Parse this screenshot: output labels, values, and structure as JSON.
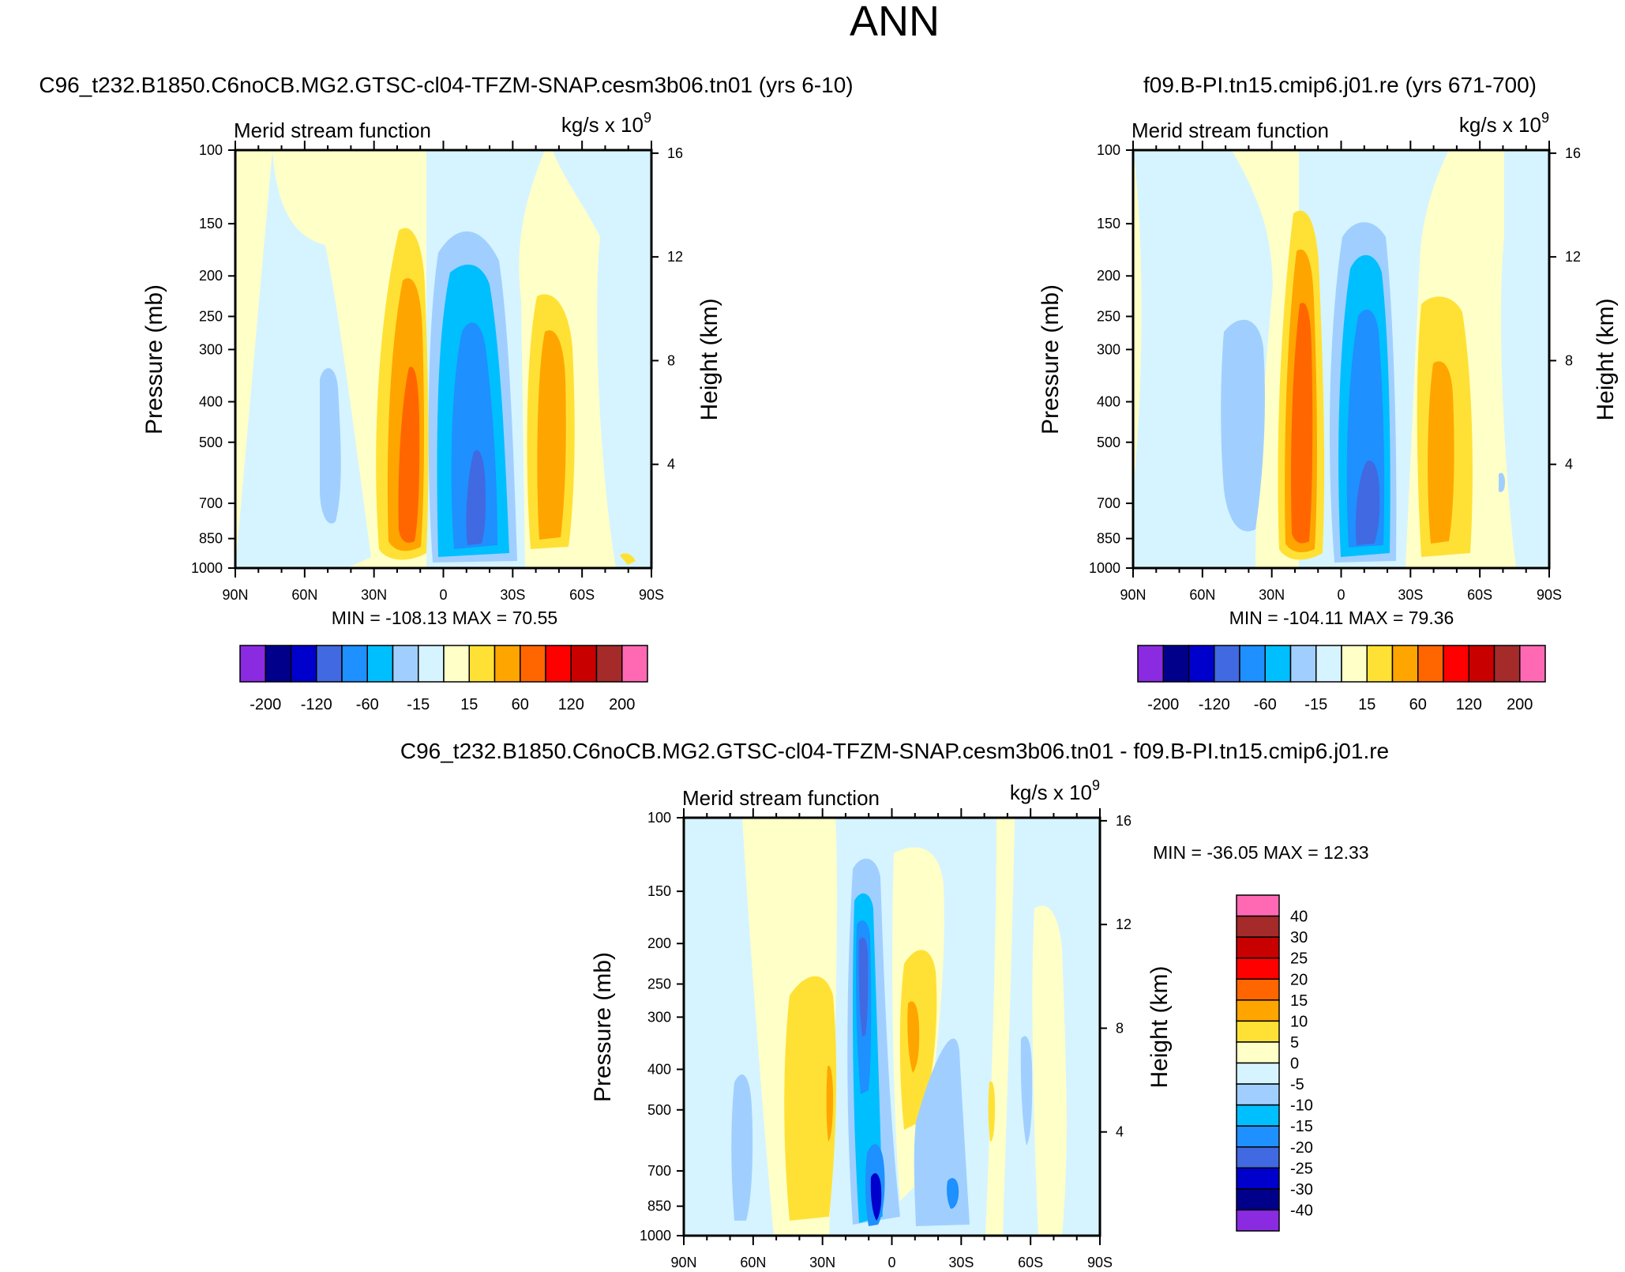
{
  "figure_title": "ANN",
  "chart_data": [
    {
      "type": "contour",
      "id": "p1",
      "case_title": "C96_t232.B1850.C6noCB.MG2.GTSC-cl04-TFZM-SNAP.cesm3b06.tn01 (yrs 6-10)",
      "title": "Merid stream function",
      "units": "kg/s x 10",
      "units_exp": "9",
      "ylabel": "Pressure (mb)",
      "y2label": "Height (km)",
      "x_ticks": [
        "90N",
        "60N",
        "30N",
        "0",
        "30S",
        "60S",
        "90S"
      ],
      "p_ticks": [
        "100",
        "150",
        "200",
        "250",
        "300",
        "400",
        "500",
        "700",
        "850",
        "1000"
      ],
      "p_values": [
        100,
        150,
        200,
        250,
        300,
        400,
        500,
        700,
        850,
        1000
      ],
      "z_ticks": [
        "16",
        "12",
        "8",
        "4"
      ],
      "z_values": [
        16,
        12,
        8,
        4
      ],
      "stats": "MIN = -108.13  MAX =  70.55",
      "colorbar_labels": [
        "-200",
        "-120",
        "-60",
        "-15",
        "15",
        "60",
        "120",
        "200"
      ],
      "colorbar_orientation": "horizontal"
    },
    {
      "type": "contour",
      "id": "p2",
      "case_title": "f09.B-PI.tn15.cmip6.j01.re (yrs 671-700)",
      "title": "Merid stream function",
      "units": "kg/s x 10",
      "units_exp": "9",
      "ylabel": "Pressure (mb)",
      "y2label": "Height (km)",
      "x_ticks": [
        "90N",
        "60N",
        "30N",
        "0",
        "30S",
        "60S",
        "90S"
      ],
      "p_ticks": [
        "100",
        "150",
        "200",
        "250",
        "300",
        "400",
        "500",
        "700",
        "850",
        "1000"
      ],
      "p_values": [
        100,
        150,
        200,
        250,
        300,
        400,
        500,
        700,
        850,
        1000
      ],
      "z_ticks": [
        "16",
        "12",
        "8",
        "4"
      ],
      "z_values": [
        16,
        12,
        8,
        4
      ],
      "stats": "MIN = -104.11  MAX =  79.36",
      "colorbar_labels": [
        "-200",
        "-120",
        "-60",
        "-15",
        "15",
        "60",
        "120",
        "200"
      ],
      "colorbar_orientation": "horizontal"
    },
    {
      "type": "contour",
      "id": "p3",
      "case_title": "C96_t232.B1850.C6noCB.MG2.GTSC-cl04-TFZM-SNAP.cesm3b06.tn01 - f09.B-PI.tn15.cmip6.j01.re",
      "title": "Merid stream function",
      "units": "kg/s x 10",
      "units_exp": "9",
      "ylabel": "Pressure (mb)",
      "y2label": "Height (km)",
      "x_ticks": [
        "90N",
        "60N",
        "30N",
        "0",
        "30S",
        "60S",
        "90S"
      ],
      "p_ticks": [
        "100",
        "150",
        "200",
        "250",
        "300",
        "400",
        "500",
        "700",
        "850",
        "1000"
      ],
      "p_values": [
        100,
        150,
        200,
        250,
        300,
        400,
        500,
        700,
        850,
        1000
      ],
      "z_ticks": [
        "16",
        "12",
        "8",
        "4"
      ],
      "z_values": [
        16,
        12,
        8,
        4
      ],
      "stats": "MIN = -36.05  MAX =  12.33",
      "colorbar_labels": [
        "40",
        "30",
        "25",
        "20",
        "15",
        "10",
        "5",
        "0",
        "-5",
        "-10",
        "-15",
        "-20",
        "-25",
        "-30",
        "-40"
      ],
      "colorbar_orientation": "vertical"
    }
  ],
  "colors": {
    "scale_low_to_high": [
      "#8a2be2",
      "#00008b",
      "#0000cd",
      "#4169e1",
      "#1e90ff",
      "#00bfff",
      "#a0cfff",
      "#d6f4ff",
      "#ffffc8",
      "#ffe135",
      "#ffa500",
      "#ff6600",
      "#ff0000",
      "#c80000",
      "#a52a2a",
      "#ff69b4"
    ]
  }
}
